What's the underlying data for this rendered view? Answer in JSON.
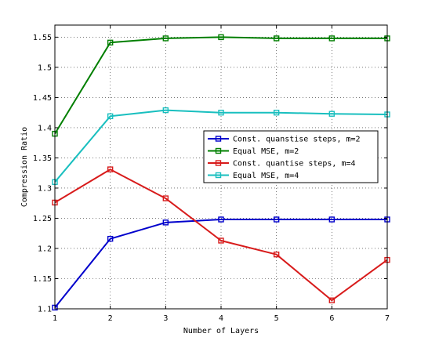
{
  "chart_data": {
    "type": "line",
    "title": "",
    "xlabel": "Number of Layers",
    "ylabel": "Compression Ratio",
    "xlim": [
      1,
      7
    ],
    "ylim": [
      1.1,
      1.57
    ],
    "xticks": [
      1,
      2,
      3,
      4,
      5,
      6,
      7
    ],
    "xtick_labels": [
      "1",
      "2",
      "3",
      "4",
      "5",
      "6",
      "7"
    ],
    "yticks": [
      1.1,
      1.15,
      1.2,
      1.25,
      1.3,
      1.35,
      1.4,
      1.45,
      1.5,
      1.55
    ],
    "ytick_labels": [
      "1.1",
      "1.15",
      "1.2",
      "1.25",
      "1.3",
      "1.35",
      "1.4",
      "1.45",
      "1.5",
      "1.55"
    ],
    "grid": true,
    "legend_position": "center-right",
    "marker": "square",
    "x": [
      1,
      2,
      3,
      4,
      5,
      6,
      7
    ],
    "series": [
      {
        "name": "Const. quanstise steps, m=2",
        "color": "#0000cc",
        "values": [
          1.102,
          1.216,
          1.243,
          1.248,
          1.248,
          1.248,
          1.248
        ]
      },
      {
        "name": "Equal MSE, m=2",
        "color": "#007f00",
        "values": [
          1.39,
          1.541,
          1.548,
          1.55,
          1.548,
          1.548,
          1.548
        ]
      },
      {
        "name": "Const. quantise steps, m=4",
        "color": "#d81b1b",
        "values": [
          1.276,
          1.331,
          1.283,
          1.213,
          1.19,
          1.114,
          1.181
        ]
      },
      {
        "name": "Equal MSE, m=4",
        "color": "#19bfbf",
        "values": [
          1.31,
          1.419,
          1.429,
          1.425,
          1.425,
          1.423,
          1.422
        ]
      }
    ]
  }
}
